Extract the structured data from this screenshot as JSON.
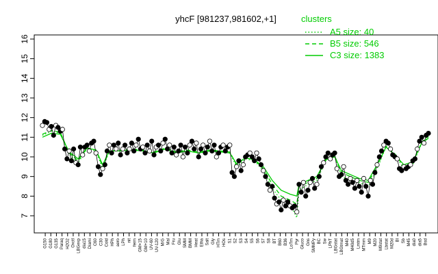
{
  "chart_data": {
    "type": "line",
    "title": "yhcF [981237,981602,+1]",
    "xlabel": "",
    "ylabel": "",
    "ylim": [
      7,
      16
    ],
    "y_ticks": [
      "7",
      "8",
      "9",
      "10",
      "11",
      "12",
      "13",
      "14",
      "15",
      "16"
    ],
    "grid": false,
    "x_tick_labels": [
      "G150",
      "G180",
      "G135",
      "Paraq",
      "H2O2",
      "Oxctl",
      "LBGexp",
      "dia15",
      "Diami",
      "C60",
      "C30",
      "Cold",
      "HPh",
      "aero",
      "LPh",
      "nit",
      "ferm",
      "GM+15",
      "GM+10",
      "UV-60",
      "UV-120",
      "M/G",
      "Mal",
      "Fru",
      "Glu",
      "SMM",
      "BMM",
      "Heat",
      "Etha",
      "Salt",
      "Gly",
      "HTm",
      "HOs",
      "S1",
      "S2",
      "S3",
      "S4",
      "S5",
      "S6",
      "S7",
      "S8",
      "BT",
      "B60",
      "B36",
      "LoTm",
      "Pyr",
      "Gluco",
      "Gns",
      "SMMPy",
      "BC",
      "Sw",
      "LPhT",
      "LBGstat",
      "LBGtmat",
      "M40",
      "M40d5",
      "Lmtm",
      "MTmm",
      "M9",
      "M20",
      "M9stat",
      "Lbstat",
      "M20d",
      "Bl",
      "Sb",
      "M45",
      "dia0",
      "dia5",
      "Bsd"
    ],
    "legend": {
      "title": "clusters",
      "placement": "top-right",
      "entries": [
        {
          "label": "A5 size: 40",
          "style": "dotted"
        },
        {
          "label": "B5 size: 546",
          "style": "dashed"
        },
        {
          "label": "C3 size: 1383",
          "style": "solid"
        }
      ]
    },
    "point_color": "#000000",
    "line_color": "#00cc00",
    "points": [
      [
        1,
        11.6
      ],
      [
        2,
        11.8
      ],
      [
        3,
        11.75
      ],
      [
        4,
        11.4
      ],
      [
        5,
        11.55
      ],
      [
        6,
        11.1
      ],
      [
        7,
        11.6
      ],
      [
        8,
        11.5
      ],
      [
        9,
        11.3
      ],
      [
        10,
        11.4
      ],
      [
        11,
        10.4
      ],
      [
        12,
        9.9
      ],
      [
        13,
        10.3
      ],
      [
        14,
        9.8
      ],
      [
        15,
        10.4
      ],
      [
        16,
        9.7
      ],
      [
        17,
        9.6
      ],
      [
        18,
        10.5
      ],
      [
        19,
        10.1
      ],
      [
        20,
        10.5
      ],
      [
        21,
        10.6
      ],
      [
        22,
        10.3
      ],
      [
        23,
        10.7
      ],
      [
        24,
        10.8
      ],
      [
        25,
        10.2
      ],
      [
        26,
        9.5
      ],
      [
        27,
        9.1
      ],
      [
        28,
        9.4
      ],
      [
        29,
        9.6
      ],
      [
        30,
        10.3
      ],
      [
        31,
        10.6
      ],
      [
        32,
        10.2
      ],
      [
        33,
        10.6
      ],
      [
        34,
        10.4
      ],
      [
        35,
        10.7
      ],
      [
        36,
        10.1
      ],
      [
        37,
        10.4
      ],
      [
        38,
        10.6
      ],
      [
        39,
        10.2
      ],
      [
        40,
        10.4
      ],
      [
        41,
        10.7
      ],
      [
        42,
        10.3
      ],
      [
        43,
        10.6
      ],
      [
        44,
        10.9
      ],
      [
        45,
        10.4
      ],
      [
        46,
        10.5
      ],
      [
        47,
        10.2
      ],
      [
        48,
        10.6
      ],
      [
        49,
        10.3
      ],
      [
        50,
        10.8
      ],
      [
        51,
        10.1
      ],
      [
        52,
        10.5
      ],
      [
        53,
        10.6
      ],
      [
        54,
        10.3
      ],
      [
        55,
        10.7
      ],
      [
        56,
        10.9
      ],
      [
        57,
        10.4
      ],
      [
        58,
        10.6
      ],
      [
        59,
        10.2
      ],
      [
        60,
        10.5
      ],
      [
        61,
        10.1
      ],
      [
        62,
        10.3
      ],
      [
        63,
        10.6
      ],
      [
        64,
        10.0
      ],
      [
        65,
        10.5
      ],
      [
        66,
        10.2
      ],
      [
        67,
        10.6
      ],
      [
        68,
        10.8
      ],
      [
        69,
        10.4
      ],
      [
        70,
        10.7
      ],
      [
        71,
        10.0
      ],
      [
        72,
        10.4
      ],
      [
        73,
        10.6
      ],
      [
        74,
        10.2
      ],
      [
        75,
        10.5
      ],
      [
        76,
        10.8
      ],
      [
        77,
        10.3
      ],
      [
        78,
        10.6
      ],
      [
        79,
        10.0
      ],
      [
        80,
        10.2
      ],
      [
        81,
        10.5
      ],
      [
        82,
        10.6
      ],
      [
        83,
        10.3
      ],
      [
        84,
        10.5
      ],
      [
        85,
        10.6
      ],
      [
        86,
        9.2
      ],
      [
        87,
        9.0
      ],
      [
        88,
        9.5
      ],
      [
        89,
        9.8
      ],
      [
        90,
        9.3
      ],
      [
        91,
        9.6
      ],
      [
        92,
        10.0
      ],
      [
        93,
        10.1
      ],
      [
        94,
        10.2
      ],
      [
        95,
        10.0
      ],
      [
        96,
        9.8
      ],
      [
        97,
        10.2
      ],
      [
        98,
        9.9
      ],
      [
        99,
        9.6
      ],
      [
        100,
        9.3
      ],
      [
        101,
        9.0
      ],
      [
        102,
        8.6
      ],
      [
        103,
        8.3
      ],
      [
        104,
        8.5
      ],
      [
        105,
        7.9
      ],
      [
        106,
        7.6
      ],
      [
        107,
        7.7
      ],
      [
        108,
        7.3
      ],
      [
        109,
        7.8
      ],
      [
        110,
        7.5
      ],
      [
        111,
        7.7
      ],
      [
        112,
        7.5
      ],
      [
        113,
        7.4
      ],
      [
        114,
        7.5
      ],
      [
        115,
        7.2
      ],
      [
        116,
        8.6
      ],
      [
        117,
        8.2
      ],
      [
        118,
        8.7
      ],
      [
        119,
        8.0
      ],
      [
        120,
        8.3
      ],
      [
        121,
        8.7
      ],
      [
        122,
        8.9
      ],
      [
        123,
        8.4
      ],
      [
        124,
        8.6
      ],
      [
        125,
        9.0
      ],
      [
        126,
        9.5
      ],
      [
        127,
        9.7
      ],
      [
        128,
        10.0
      ],
      [
        129,
        10.2
      ],
      [
        130,
        9.9
      ],
      [
        131,
        10.1
      ],
      [
        132,
        10.2
      ],
      [
        133,
        9.4
      ],
      [
        134,
        9.0
      ],
      [
        135,
        9.1
      ],
      [
        136,
        9.5
      ],
      [
        137,
        8.8
      ],
      [
        138,
        8.6
      ],
      [
        139,
        8.9
      ],
      [
        140,
        8.7
      ],
      [
        141,
        8.4
      ],
      [
        142,
        8.8
      ],
      [
        143,
        8.5
      ],
      [
        144,
        8.2
      ],
      [
        145,
        8.9
      ],
      [
        146,
        8.5
      ],
      [
        147,
        8.0
      ],
      [
        148,
        8.8
      ],
      [
        149,
        8.6
      ],
      [
        150,
        9.2
      ],
      [
        151,
        9.6
      ],
      [
        152,
        10.0
      ],
      [
        153,
        10.3
      ],
      [
        154,
        10.6
      ],
      [
        155,
        10.8
      ],
      [
        156,
        10.7
      ],
      [
        157,
        10.4
      ],
      [
        158,
        10.1
      ],
      [
        159,
        10.0
      ],
      [
        160,
        9.9
      ],
      [
        161,
        9.4
      ],
      [
        162,
        9.3
      ],
      [
        163,
        9.5
      ],
      [
        164,
        9.4
      ],
      [
        165,
        9.5
      ],
      [
        166,
        9.6
      ],
      [
        167,
        9.8
      ],
      [
        168,
        9.9
      ],
      [
        169,
        10.4
      ],
      [
        170,
        10.8
      ],
      [
        171,
        11.0
      ],
      [
        172,
        10.7
      ],
      [
        173,
        11.1
      ],
      [
        174,
        11.2
      ]
    ],
    "series": [
      {
        "name": "A5 size: 40",
        "style": "dotted",
        "values": [
          [
            1,
            11.1
          ],
          [
            5,
            11.3
          ],
          [
            9,
            11.2
          ],
          [
            13,
            10.1
          ],
          [
            17,
            9.7
          ],
          [
            21,
            10.4
          ],
          [
            25,
            10.3
          ],
          [
            28,
            9.4
          ],
          [
            31,
            10.3
          ],
          [
            36,
            10.3
          ],
          [
            41,
            10.4
          ],
          [
            46,
            10.3
          ],
          [
            51,
            10.2
          ],
          [
            56,
            10.4
          ],
          [
            61,
            10.2
          ],
          [
            66,
            10.3
          ],
          [
            71,
            10.2
          ],
          [
            76,
            10.3
          ],
          [
            81,
            10.3
          ],
          [
            85,
            10.2
          ],
          [
            88,
            9.5
          ],
          [
            92,
            9.9
          ],
          [
            96,
            9.8
          ],
          [
            100,
            9.3
          ],
          [
            104,
            8.4
          ],
          [
            108,
            7.8
          ],
          [
            112,
            7.6
          ],
          [
            115,
            6.9
          ],
          [
            116,
            8.3
          ],
          [
            120,
            8.6
          ],
          [
            124,
            8.8
          ],
          [
            128,
            9.8
          ],
          [
            132,
            10.0
          ],
          [
            135,
            9.0
          ],
          [
            139,
            8.8
          ],
          [
            143,
            8.7
          ],
          [
            147,
            8.5
          ],
          [
            151,
            9.4
          ],
          [
            155,
            10.5
          ],
          [
            159,
            10.1
          ],
          [
            163,
            9.4
          ],
          [
            167,
            9.6
          ],
          [
            171,
            10.7
          ],
          [
            174,
            11.0
          ]
        ]
      },
      {
        "name": "B5 size: 546",
        "style": "dashed",
        "values": [
          [
            1,
            11.15
          ],
          [
            5,
            11.35
          ],
          [
            9,
            11.25
          ],
          [
            13,
            10.2
          ],
          [
            17,
            9.8
          ],
          [
            21,
            10.45
          ],
          [
            25,
            10.35
          ],
          [
            28,
            9.5
          ],
          [
            31,
            10.3
          ],
          [
            36,
            10.35
          ],
          [
            41,
            10.4
          ],
          [
            46,
            10.35
          ],
          [
            51,
            10.25
          ],
          [
            56,
            10.45
          ],
          [
            61,
            10.25
          ],
          [
            66,
            10.35
          ],
          [
            71,
            10.25
          ],
          [
            76,
            10.35
          ],
          [
            81,
            10.3
          ],
          [
            85,
            10.25
          ],
          [
            88,
            9.6
          ],
          [
            92,
            9.95
          ],
          [
            96,
            9.85
          ],
          [
            100,
            9.4
          ],
          [
            104,
            8.6
          ],
          [
            108,
            8.0
          ],
          [
            112,
            7.8
          ],
          [
            115,
            7.6
          ],
          [
            116,
            8.5
          ],
          [
            120,
            8.7
          ],
          [
            124,
            8.9
          ],
          [
            128,
            9.9
          ],
          [
            132,
            10.05
          ],
          [
            135,
            9.2
          ],
          [
            139,
            9.0
          ],
          [
            143,
            8.8
          ],
          [
            147,
            8.7
          ],
          [
            151,
            9.5
          ],
          [
            155,
            10.55
          ],
          [
            159,
            10.15
          ],
          [
            163,
            9.5
          ],
          [
            167,
            9.7
          ],
          [
            171,
            10.75
          ],
          [
            174,
            11.05
          ]
        ]
      },
      {
        "name": "C3 size: 1383",
        "style": "solid",
        "values": [
          [
            1,
            11.0
          ],
          [
            5,
            11.2
          ],
          [
            9,
            11.15
          ],
          [
            13,
            10.25
          ],
          [
            17,
            9.9
          ],
          [
            21,
            10.45
          ],
          [
            25,
            10.35
          ],
          [
            28,
            9.6
          ],
          [
            31,
            10.3
          ],
          [
            36,
            10.3
          ],
          [
            41,
            10.35
          ],
          [
            46,
            10.3
          ],
          [
            51,
            10.2
          ],
          [
            56,
            10.4
          ],
          [
            61,
            10.2
          ],
          [
            66,
            10.3
          ],
          [
            71,
            10.2
          ],
          [
            76,
            10.3
          ],
          [
            81,
            10.25
          ],
          [
            85,
            10.2
          ],
          [
            88,
            9.65
          ],
          [
            92,
            9.95
          ],
          [
            96,
            9.85
          ],
          [
            100,
            9.5
          ],
          [
            104,
            8.8
          ],
          [
            108,
            8.3
          ],
          [
            112,
            8.1
          ],
          [
            115,
            8.0
          ],
          [
            116,
            8.6
          ],
          [
            120,
            8.8
          ],
          [
            124,
            9.0
          ],
          [
            128,
            9.85
          ],
          [
            132,
            10.0
          ],
          [
            135,
            9.3
          ],
          [
            139,
            9.1
          ],
          [
            143,
            8.9
          ],
          [
            147,
            8.8
          ],
          [
            151,
            9.6
          ],
          [
            155,
            10.5
          ],
          [
            159,
            10.1
          ],
          [
            163,
            9.6
          ],
          [
            167,
            9.75
          ],
          [
            171,
            10.7
          ],
          [
            174,
            10.95
          ]
        ]
      }
    ]
  }
}
